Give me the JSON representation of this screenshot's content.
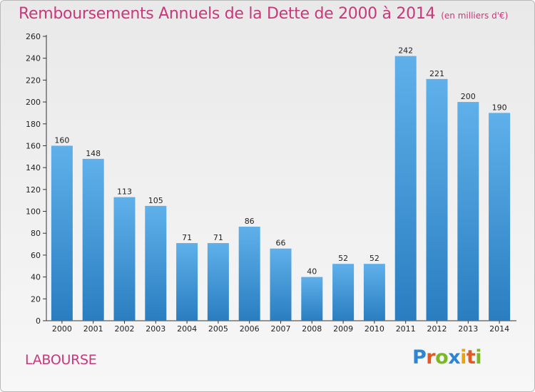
{
  "title": "Remboursements Annuels de la Dette de 2000 à 2014",
  "unit_label": "(en milliers d'€)",
  "city": "LABOURSE",
  "logo": {
    "letters": [
      "P",
      "r",
      "o",
      "x",
      "i",
      "t",
      "i"
    ],
    "colors": [
      "#2d86d3",
      "#e05a26",
      "#7ab827",
      "#2d86d3",
      "#e8a312",
      "#e05a26",
      "#7ab827"
    ]
  },
  "colors": {
    "title": "#c8387a",
    "bar_top": "#5fb0ea",
    "bar_bottom": "#2a7ec0"
  },
  "chart_data": {
    "type": "bar",
    "categories": [
      "2000",
      "2001",
      "2002",
      "2003",
      "2004",
      "2005",
      "2006",
      "2007",
      "2008",
      "2009",
      "2010",
      "2011",
      "2012",
      "2013",
      "2014"
    ],
    "values": [
      160,
      148,
      113,
      105,
      71,
      71,
      86,
      66,
      40,
      52,
      52,
      242,
      221,
      200,
      190
    ],
    "title": "Remboursements Annuels de la Dette de 2000 à 2014",
    "xlabel": "",
    "ylabel": "",
    "ylim": [
      0,
      260
    ],
    "yticks": [
      0,
      20,
      40,
      60,
      80,
      100,
      120,
      140,
      160,
      180,
      200,
      220,
      240,
      260
    ],
    "grid": false,
    "data_labels": true
  }
}
